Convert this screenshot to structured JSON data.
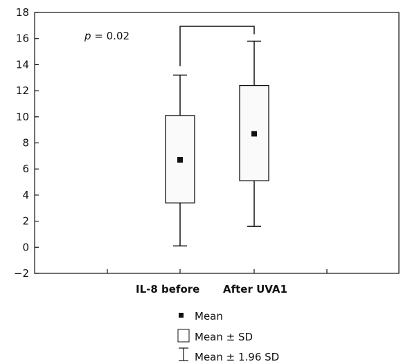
{
  "chart_data": {
    "type": "box",
    "title": "",
    "xlabel": "",
    "ylabel": "",
    "ylim": [
      -2,
      18
    ],
    "yticks": [
      -2,
      0,
      2,
      4,
      6,
      8,
      10,
      12,
      14,
      16,
      18
    ],
    "grid": false,
    "categories": [
      "IL-8 before",
      "After UVA1"
    ],
    "boxes": [
      {
        "category": "IL-8 before",
        "mean": 6.7,
        "sd_low": 3.4,
        "sd_high": 10.1,
        "ci_low": 0.1,
        "ci_high": 13.2
      },
      {
        "category": "After UVA1",
        "mean": 8.7,
        "sd_low": 5.1,
        "sd_high": 12.4,
        "ci_low": 1.6,
        "ci_high": 15.8
      }
    ],
    "annotation": {
      "p_symbol": "p",
      "p_rest": " = 0.02"
    },
    "legend": {
      "position": "bottom-center",
      "items": [
        "Mean",
        "Mean ± SD",
        "Mean ± 1.96 SD"
      ]
    }
  }
}
